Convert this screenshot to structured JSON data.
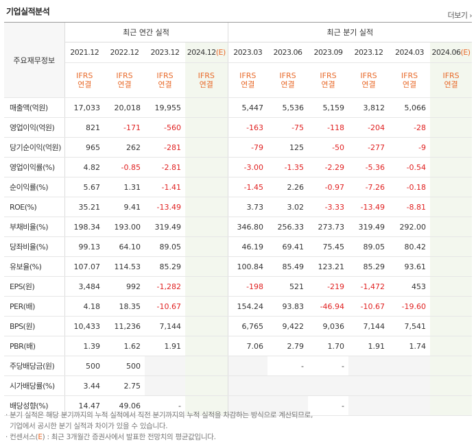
{
  "title": "기업실적분석",
  "more_label": "더보기",
  "header": {
    "row_label": "주요재무정보",
    "annual_group": "최근 연간 실적",
    "quarter_group": "최근 분기 실적",
    "annual_periods": [
      "2021.12",
      "2022.12",
      "2023.12",
      "2024.12(E)"
    ],
    "quarter_periods": [
      "2023.03",
      "2023.06",
      "2023.09",
      "2023.12",
      "2024.03",
      "2024.06(E)"
    ],
    "ifrs_top": "IFRS",
    "ifrs_bottom": "연결"
  },
  "rows": [
    {
      "label": "매출액(억원)",
      "values": [
        "17,033",
        "20,018",
        "19,955",
        "",
        "5,447",
        "5,536",
        "5,159",
        "3,812",
        "5,066",
        ""
      ]
    },
    {
      "label": "영업이익(억원)",
      "values": [
        "821",
        "-171",
        "-560",
        "",
        "-163",
        "-75",
        "-118",
        "-204",
        "-28",
        ""
      ]
    },
    {
      "label": "당기순이익(억원)",
      "values": [
        "965",
        "262",
        "-281",
        "",
        "-79",
        "125",
        "-50",
        "-277",
        "-9",
        ""
      ]
    },
    {
      "label": "영업이익률(%)",
      "values": [
        "4.82",
        "-0.85",
        "-2.81",
        "",
        "-3.00",
        "-1.35",
        "-2.29",
        "-5.36",
        "-0.54",
        ""
      ]
    },
    {
      "label": "순이익률(%)",
      "values": [
        "5.67",
        "1.31",
        "-1.41",
        "",
        "-1.45",
        "2.26",
        "-0.97",
        "-7.26",
        "-0.18",
        ""
      ]
    },
    {
      "label": "ROE(%)",
      "values": [
        "35.21",
        "9.41",
        "-13.49",
        "",
        "3.73",
        "3.02",
        "-3.33",
        "-13.49",
        "-8.81",
        ""
      ]
    },
    {
      "label": "부채비율(%)",
      "values": [
        "198.34",
        "193.00",
        "319.49",
        "",
        "346.80",
        "256.33",
        "273.73",
        "319.49",
        "292.00",
        ""
      ]
    },
    {
      "label": "당좌비율(%)",
      "values": [
        "99.13",
        "64.10",
        "89.05",
        "",
        "46.19",
        "69.41",
        "75.45",
        "89.05",
        "80.42",
        ""
      ]
    },
    {
      "label": "유보율(%)",
      "values": [
        "107.07",
        "114.53",
        "85.29",
        "",
        "100.84",
        "85.49",
        "123.21",
        "85.29",
        "93.61",
        ""
      ]
    },
    {
      "label": "EPS(원)",
      "values": [
        "3,484",
        "992",
        "-1,282",
        "",
        "-198",
        "521",
        "-219",
        "-1,472",
        "453",
        ""
      ]
    },
    {
      "label": "PER(배)",
      "values": [
        "4.18",
        "18.35",
        "-10.67",
        "",
        "154.24",
        "93.83",
        "-46.94",
        "-10.67",
        "-19.60",
        ""
      ]
    },
    {
      "label": "BPS(원)",
      "values": [
        "10,433",
        "11,236",
        "7,144",
        "",
        "6,765",
        "9,422",
        "9,036",
        "7,144",
        "7,541",
        ""
      ]
    },
    {
      "label": "PBR(배)",
      "values": [
        "1.39",
        "1.62",
        "1.91",
        "",
        "7.06",
        "2.79",
        "1.70",
        "1.91",
        "1.74",
        ""
      ]
    },
    {
      "label": "주당배당금(원)",
      "values": [
        "500",
        "500",
        "",
        "",
        "",
        "-",
        "-",
        "",
        "",
        ""
      ]
    },
    {
      "label": "시가배당률(%)",
      "values": [
        "3.44",
        "2.75",
        "",
        "",
        "",
        "",
        "",
        "",
        "",
        ""
      ]
    },
    {
      "label": "배당성향(%)",
      "values": [
        "14.47",
        "49.06",
        "-",
        "",
        "",
        "",
        "-",
        "",
        "",
        ""
      ]
    }
  ],
  "notes": [
    "· 분기 실적은 해당 분기까지의 누적 실적에서 직전 분기까지의 누적 실적을 차감하는 방식으로 계산되므로,",
    "  기업에서 공시한 분기 실적과 차이가 있을 수 있습니다.",
    "· 컨센서스(",
    "E",
    ") : 최근 3개월간 증권사에서 발표한 전망치의 평균값입니다."
  ],
  "colors": {
    "negative": "#e02020",
    "ifrs": "#e86a2a",
    "estimate_bg": "#f3f7ee"
  }
}
